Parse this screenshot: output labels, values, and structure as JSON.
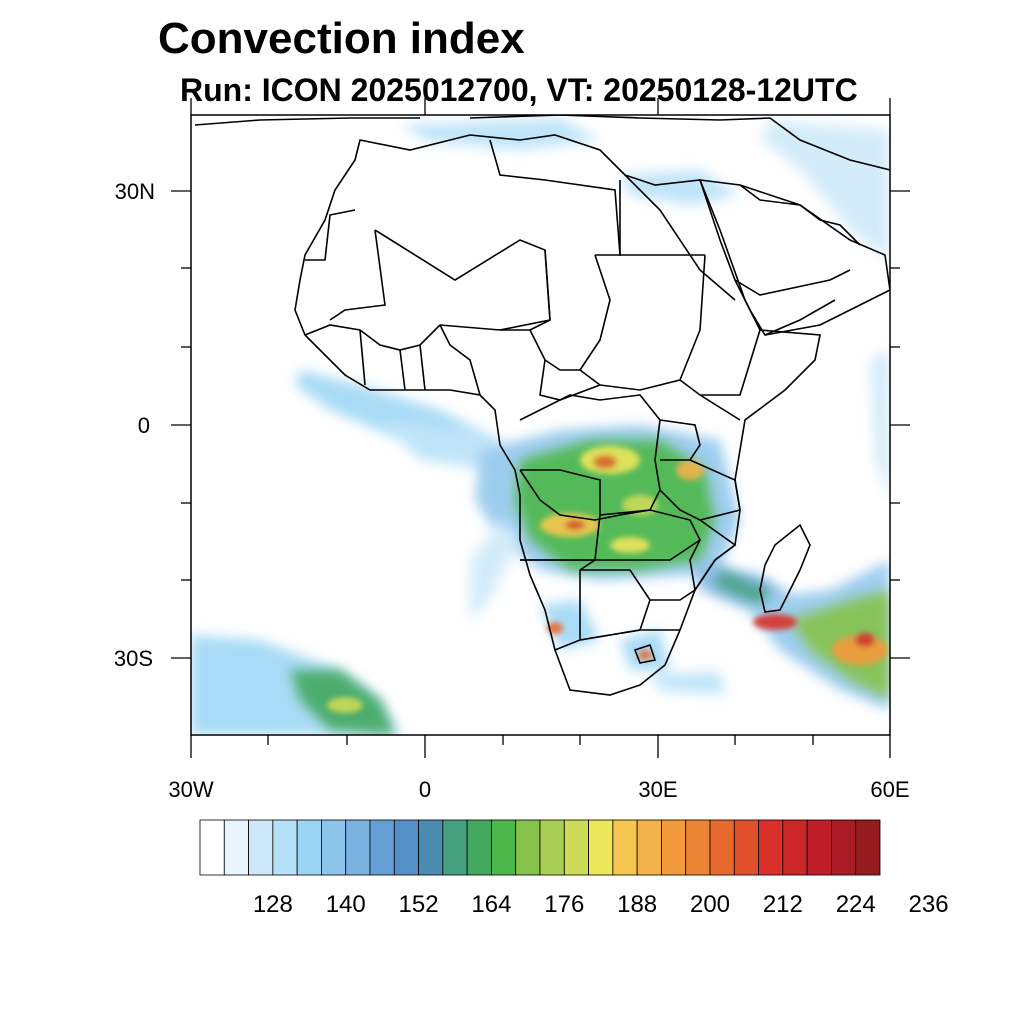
{
  "header": {
    "title": "Convection index",
    "subtitle": "Run: ICON 2025012700,  VT: 20250128-12UTC"
  },
  "map": {
    "lat_labels": [
      "30N",
      "0",
      "30S"
    ],
    "lon_labels": [
      "30W",
      "0",
      "30E",
      "60E"
    ],
    "lon_range": [
      -30,
      60
    ],
    "lat_range": [
      -40,
      40
    ]
  },
  "colorbar": {
    "labels": [
      "128",
      "140",
      "152",
      "164",
      "176",
      "188",
      "200",
      "212",
      "224",
      "236"
    ],
    "colors": [
      "#ffffff",
      "#e8f5fd",
      "#cde9f9",
      "#b5e0f8",
      "#9ad5f4",
      "#8dc5ec",
      "#7ab3e2",
      "#659fd5",
      "#5390c8",
      "#4a8bb0",
      "#45a080",
      "#43a85e",
      "#4db84a",
      "#86c24b",
      "#a9cf52",
      "#cedb58",
      "#eee65b",
      "#f6c750",
      "#f3b24a",
      "#f39a3c",
      "#ed8536",
      "#e8692d",
      "#e0502b",
      "#d93129",
      "#cc2728",
      "#bd1e2a",
      "#ab1b23",
      "#961b1d"
    ]
  }
}
